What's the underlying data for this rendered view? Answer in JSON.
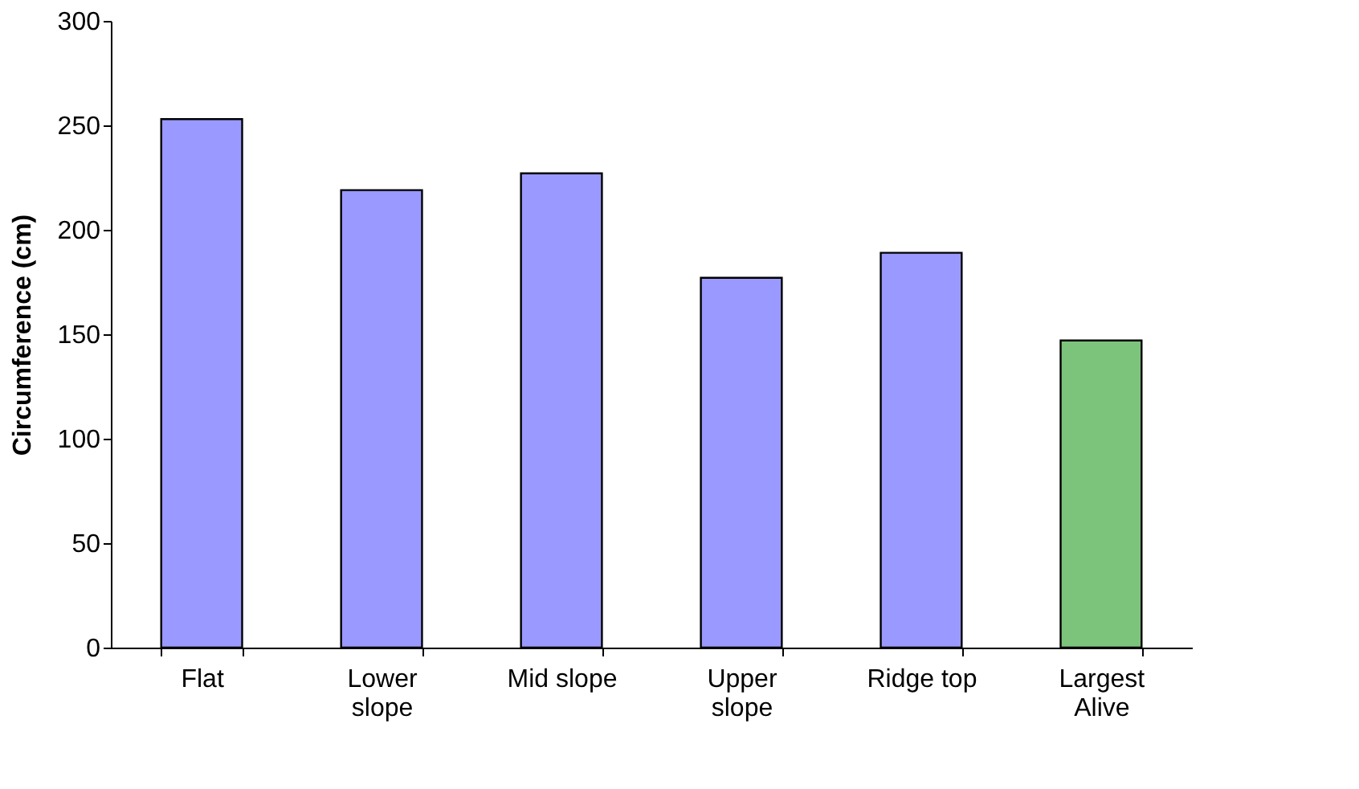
{
  "chart_data": {
    "type": "bar",
    "ylabel": "Circumference (cm)",
    "categories": [
      "Flat",
      "Lower\nslope",
      "Mid slope",
      "Upper\nslope",
      "Ridge top",
      "Largest\nAlive"
    ],
    "values": [
      253,
      219,
      227,
      177,
      189,
      147
    ],
    "colors": [
      "#9999ff",
      "#9999ff",
      "#9999ff",
      "#9999ff",
      "#9999ff",
      "#7cc47c"
    ],
    "ylim": [
      0,
      300
    ],
    "yticks": [
      0,
      50,
      100,
      150,
      200,
      250,
      300
    ],
    "grid": false
  }
}
